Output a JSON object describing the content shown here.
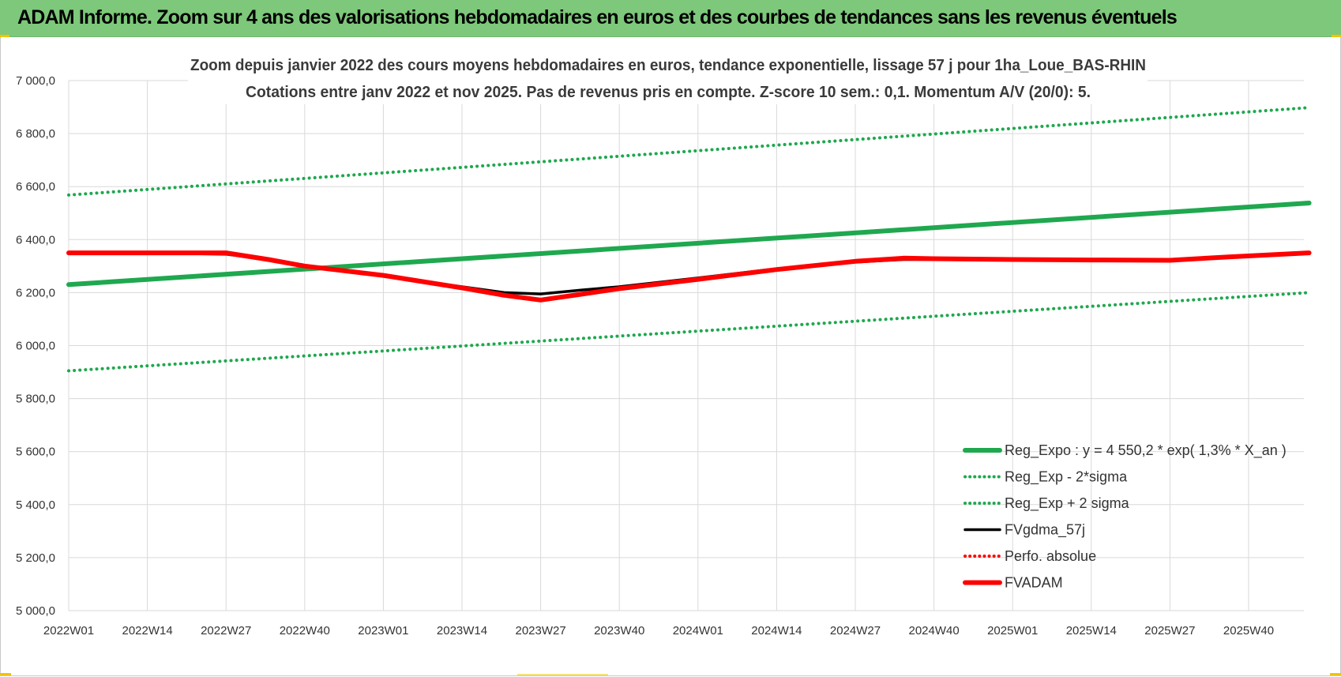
{
  "header": {
    "title": "ADAM Informe. Zoom sur 4 ans des valorisations hebdomadaires en euros et des courbes de tendances sans les revenus éventuels"
  },
  "chart_data": {
    "type": "line",
    "title": "Zoom depuis janvier 2022 des cours moyens hebdomadaires en euros, tendance exponentielle, lissage 57 j pour 1ha_Loue_BAS-RHIN",
    "subtitle": "Cotations entre janv 2022 et nov 2025. Pas de revenus pris en compte. Z-score 10 sem.: 0,1. Momentum A/V (20/0): 5.",
    "xlabel": "",
    "ylabel": "",
    "ylim": [
      5000,
      7000
    ],
    "y_ticks": [
      "7 000,0",
      "6 800,0",
      "6 600,0",
      "6 400,0",
      "6 200,0",
      "6 000,0",
      "5 800,0",
      "5 600,0",
      "5 400,0",
      "5 200,0",
      "5 000,0"
    ],
    "x_ticks": [
      "2022W01",
      "2022W14",
      "2022W27",
      "2022W40",
      "2023W01",
      "2023W14",
      "2023W27",
      "2023W40",
      "2024W01",
      "2024W14",
      "2024W27",
      "2024W40",
      "2025W01",
      "2025W14",
      "2025W27",
      "2025W40"
    ],
    "grid": true,
    "legend_position": "bottom-right",
    "x_range_weeks": [
      0,
      205
    ],
    "series": [
      {
        "name": "Reg_Expo : y = 4 550,2 * exp( 1,3% *  X_an )",
        "color": "#1fa84f",
        "style": "solid-thick",
        "x": [
          0,
          205
        ],
        "values": [
          6230,
          6538
        ]
      },
      {
        "name": "Reg_Exp - 2*sigma",
        "color": "#1fa84f",
        "style": "dotted",
        "x": [
          0,
          205
        ],
        "values": [
          5905,
          6200
        ]
      },
      {
        "name": "Reg_Exp + 2 sigma",
        "color": "#1fa84f",
        "style": "dotted",
        "x": [
          0,
          205
        ],
        "values": [
          6568,
          6898
        ]
      },
      {
        "name": "FVgdma_57j",
        "color": "#000000",
        "style": "solid",
        "x": [
          0,
          13,
          26,
          33,
          39,
          52,
          65,
          72,
          78,
          85,
          91,
          104,
          117,
          130,
          138,
          143,
          156,
          169,
          182,
          192,
          205
        ],
        "values": [
          6350,
          6350,
          6345,
          6325,
          6300,
          6262,
          6222,
          6200,
          6195,
          6210,
          6222,
          6255,
          6290,
          6315,
          6325,
          6325,
          6325,
          6325,
          6323,
          6335,
          6350
        ]
      },
      {
        "name": "Perfo. absolue",
        "color": "#ff0000",
        "style": "dotted",
        "x": [],
        "values": []
      },
      {
        "name": "FVADAM",
        "color": "#ff0000",
        "style": "solid-thick",
        "x": [
          0,
          13,
          26,
          33,
          39,
          52,
          65,
          72,
          78,
          85,
          91,
          104,
          117,
          130,
          138,
          143,
          156,
          169,
          182,
          192,
          205
        ],
        "values": [
          6350,
          6350,
          6350,
          6325,
          6300,
          6265,
          6218,
          6190,
          6172,
          6195,
          6215,
          6250,
          6287,
          6318,
          6330,
          6328,
          6325,
          6323,
          6322,
          6335,
          6350
        ]
      }
    ]
  }
}
